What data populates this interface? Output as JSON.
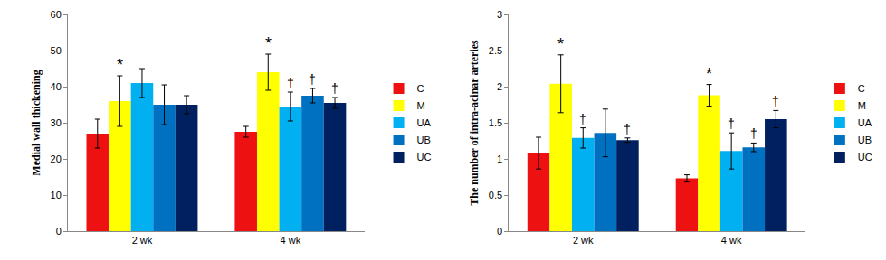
{
  "chart_data": [
    {
      "type": "bar",
      "y_label": "Medial wall thickening",
      "categories": [
        "2 wk",
        "4 wk"
      ],
      "series": [
        {
          "name": "C",
          "color": "#ee1111",
          "values": [
            27,
            27.5
          ],
          "errors": [
            4,
            1.5
          ],
          "annotations": [
            null,
            null
          ]
        },
        {
          "name": "M",
          "color": "#ffff00",
          "values": [
            36,
            44
          ],
          "errors": [
            7,
            5
          ],
          "annotations": [
            "*",
            "*"
          ]
        },
        {
          "name": "UA",
          "color": "#00b0f0",
          "values": [
            41,
            34.5
          ],
          "errors": [
            4,
            4
          ],
          "annotations": [
            null,
            "†"
          ]
        },
        {
          "name": "UB",
          "color": "#0070c0",
          "values": [
            35,
            37.5
          ],
          "errors": [
            5.5,
            2
          ],
          "annotations": [
            null,
            "†"
          ]
        },
        {
          "name": "UC",
          "color": "#002060",
          "values": [
            35,
            35.5
          ],
          "errors": [
            2.5,
            1.5
          ],
          "annotations": [
            null,
            "†"
          ]
        }
      ],
      "ylim": [
        0,
        60
      ],
      "yticks": [
        0,
        10,
        20,
        30,
        40,
        50,
        60
      ],
      "grid": false,
      "legend": "right"
    },
    {
      "type": "bar",
      "y_label": "The number of intra-acinar arteries",
      "categories": [
        "2 wk",
        "4 wk"
      ],
      "series": [
        {
          "name": "C",
          "color": "#ee1111",
          "values": [
            1.08,
            0.73
          ],
          "errors": [
            0.22,
            0.05
          ],
          "annotations": [
            null,
            null
          ]
        },
        {
          "name": "M",
          "color": "#ffff00",
          "values": [
            2.04,
            1.88
          ],
          "errors": [
            0.4,
            0.15
          ],
          "annotations": [
            "*",
            "*"
          ]
        },
        {
          "name": "UA",
          "color": "#00b0f0",
          "values": [
            1.29,
            1.11
          ],
          "errors": [
            0.14,
            0.25
          ],
          "annotations": [
            "†",
            "†"
          ]
        },
        {
          "name": "UB",
          "color": "#0070c0",
          "values": [
            1.36,
            1.16
          ],
          "errors": [
            0.33,
            0.06
          ],
          "annotations": [
            null,
            "†"
          ]
        },
        {
          "name": "UC",
          "color": "#002060",
          "values": [
            1.26,
            1.55
          ],
          "errors": [
            0.03,
            0.12
          ],
          "annotations": [
            "†",
            "†"
          ]
        }
      ],
      "ylim": [
        0,
        3
      ],
      "yticks": [
        0,
        0.5,
        1,
        1.5,
        2,
        2.5,
        3
      ],
      "grid": false,
      "legend": "right"
    }
  ]
}
